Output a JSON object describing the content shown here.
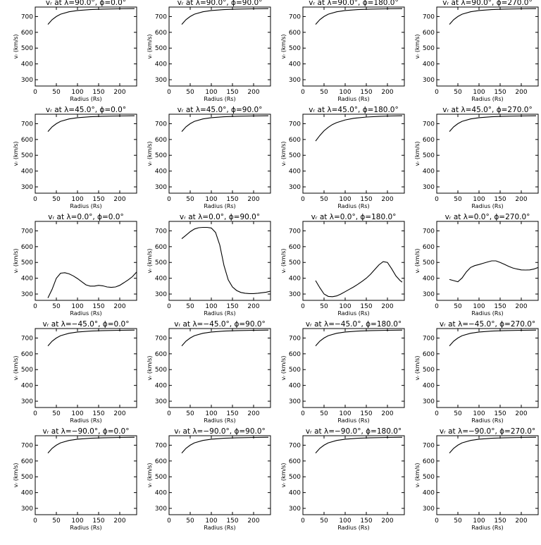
{
  "chart_data": [
    {
      "type": "line",
      "title": "vᵣ at λ=90.0°, ϕ=0.0°",
      "xlabel": "Radius (Rs)",
      "ylabel": "vᵣ (km/s)",
      "xlim": [
        0,
        240
      ],
      "ylim": [
        260,
        760
      ],
      "xticks": [
        0,
        50,
        100,
        150,
        200
      ],
      "yticks": [
        300,
        400,
        500,
        600,
        700
      ],
      "series": [
        {
          "x": [
            30,
            40,
            50,
            60,
            80,
            100,
            130,
            160,
            200,
            235
          ],
          "y": [
            650,
            680,
            700,
            715,
            730,
            738,
            744,
            747,
            749,
            750
          ]
        }
      ]
    },
    {
      "type": "line",
      "title": "vᵣ at λ=90.0°, ϕ=90.0°",
      "xlabel": "Radius (Rs)",
      "ylabel": "vᵣ (km/s)",
      "xlim": [
        0,
        240
      ],
      "ylim": [
        260,
        760
      ],
      "xticks": [
        0,
        50,
        100,
        150,
        200
      ],
      "yticks": [
        300,
        400,
        500,
        600,
        700
      ],
      "series": [
        {
          "x": [
            30,
            40,
            50,
            60,
            80,
            100,
            130,
            160,
            200,
            235
          ],
          "y": [
            650,
            680,
            700,
            715,
            730,
            738,
            744,
            747,
            749,
            750
          ]
        }
      ]
    },
    {
      "type": "line",
      "title": "vᵣ at λ=90.0°, ϕ=180.0°",
      "xlabel": "Radius (Rs)",
      "ylabel": "vᵣ (km/s)",
      "xlim": [
        0,
        240
      ],
      "ylim": [
        260,
        760
      ],
      "xticks": [
        0,
        50,
        100,
        150,
        200
      ],
      "yticks": [
        300,
        400,
        500,
        600,
        700
      ],
      "series": [
        {
          "x": [
            30,
            40,
            50,
            60,
            80,
            100,
            130,
            160,
            200,
            235
          ],
          "y": [
            650,
            680,
            700,
            715,
            730,
            738,
            744,
            747,
            749,
            750
          ]
        }
      ]
    },
    {
      "type": "line",
      "title": "vᵣ at λ=90.0°, ϕ=270.0°",
      "xlabel": "Radius (Rs)",
      "ylabel": "vᵣ (km/s)",
      "xlim": [
        0,
        240
      ],
      "ylim": [
        260,
        760
      ],
      "xticks": [
        0,
        50,
        100,
        150,
        200
      ],
      "yticks": [
        300,
        400,
        500,
        600,
        700
      ],
      "series": [
        {
          "x": [
            30,
            40,
            50,
            60,
            80,
            100,
            130,
            160,
            200,
            235
          ],
          "y": [
            650,
            680,
            700,
            715,
            730,
            738,
            744,
            747,
            749,
            750
          ]
        }
      ]
    },
    {
      "type": "line",
      "title": "vᵣ at λ=45.0°, ϕ=0.0°",
      "xlabel": "Radius (Rs)",
      "ylabel": "vᵣ (km/s)",
      "xlim": [
        0,
        240
      ],
      "ylim": [
        260,
        760
      ],
      "xticks": [
        0,
        50,
        100,
        150,
        200
      ],
      "yticks": [
        300,
        400,
        500,
        600,
        700
      ],
      "series": [
        {
          "x": [
            30,
            40,
            50,
            60,
            80,
            100,
            130,
            160,
            200,
            235
          ],
          "y": [
            650,
            680,
            700,
            715,
            730,
            738,
            744,
            747,
            749,
            750
          ]
        }
      ]
    },
    {
      "type": "line",
      "title": "vᵣ at λ=45.0°, ϕ=90.0°",
      "xlabel": "Radius (Rs)",
      "ylabel": "vᵣ (km/s)",
      "xlim": [
        0,
        240
      ],
      "ylim": [
        260,
        760
      ],
      "xticks": [
        0,
        50,
        100,
        150,
        200
      ],
      "yticks": [
        300,
        400,
        500,
        600,
        700
      ],
      "series": [
        {
          "x": [
            30,
            40,
            50,
            60,
            80,
            100,
            130,
            160,
            200,
            235
          ],
          "y": [
            650,
            680,
            700,
            715,
            730,
            738,
            744,
            747,
            749,
            750
          ]
        }
      ]
    },
    {
      "type": "line",
      "title": "vᵣ at λ=45.0°, ϕ=180.0°",
      "xlabel": "Radius (Rs)",
      "ylabel": "vᵣ (km/s)",
      "xlim": [
        0,
        240
      ],
      "ylim": [
        260,
        760
      ],
      "xticks": [
        0,
        50,
        100,
        150,
        200
      ],
      "yticks": [
        300,
        400,
        500,
        600,
        700
      ],
      "series": [
        {
          "x": [
            30,
            40,
            50,
            60,
            70,
            80,
            100,
            120,
            150,
            180,
            210,
            235
          ],
          "y": [
            590,
            625,
            655,
            677,
            695,
            707,
            724,
            734,
            742,
            746,
            749,
            750
          ]
        }
      ]
    },
    {
      "type": "line",
      "title": "vᵣ at λ=45.0°, ϕ=270.0°",
      "xlabel": "Radius (Rs)",
      "ylabel": "vᵣ (km/s)",
      "xlim": [
        0,
        240
      ],
      "ylim": [
        260,
        760
      ],
      "xticks": [
        0,
        50,
        100,
        150,
        200
      ],
      "yticks": [
        300,
        400,
        500,
        600,
        700
      ],
      "series": [
        {
          "x": [
            30,
            40,
            50,
            60,
            80,
            100,
            130,
            160,
            200,
            235
          ],
          "y": [
            650,
            680,
            700,
            715,
            730,
            738,
            744,
            747,
            749,
            750
          ]
        }
      ]
    },
    {
      "type": "line",
      "title": "vᵣ at λ=0.0°, ϕ=0.0°",
      "xlabel": "Radius (Rs)",
      "ylabel": "vᵣ (km/s)",
      "xlim": [
        0,
        240
      ],
      "ylim": [
        260,
        760
      ],
      "xticks": [
        0,
        50,
        100,
        150,
        200
      ],
      "yticks": [
        300,
        400,
        500,
        600,
        700
      ],
      "series": [
        {
          "x": [
            30,
            40,
            50,
            60,
            70,
            80,
            90,
            100,
            110,
            120,
            130,
            140,
            150,
            160,
            170,
            180,
            190,
            200,
            210,
            220,
            230,
            240
          ],
          "y": [
            275,
            330,
            400,
            432,
            435,
            428,
            415,
            398,
            378,
            358,
            350,
            350,
            355,
            352,
            345,
            342,
            345,
            355,
            372,
            390,
            410,
            440
          ]
        }
      ]
    },
    {
      "type": "line",
      "title": "vᵣ at λ=0.0°, ϕ=90.0°",
      "xlabel": "Radius (Rs)",
      "ylabel": "vᵣ (km/s)",
      "xlim": [
        0,
        240
      ],
      "ylim": [
        260,
        760
      ],
      "xticks": [
        0,
        50,
        100,
        150,
        200
      ],
      "yticks": [
        300,
        400,
        500,
        600,
        700
      ],
      "series": [
        {
          "x": [
            30,
            40,
            50,
            60,
            70,
            80,
            90,
            100,
            110,
            120,
            130,
            140,
            150,
            160,
            170,
            180,
            190,
            200,
            210,
            220,
            230,
            240
          ],
          "y": [
            650,
            672,
            695,
            712,
            720,
            722,
            722,
            718,
            690,
            610,
            480,
            390,
            345,
            322,
            310,
            305,
            303,
            303,
            305,
            308,
            312,
            318
          ]
        }
      ]
    },
    {
      "type": "line",
      "title": "vᵣ at λ=0.0°, ϕ=180.0°",
      "xlabel": "Radius (Rs)",
      "ylabel": "vᵣ (km/s)",
      "xlim": [
        0,
        240
      ],
      "ylim": [
        260,
        760
      ],
      "xticks": [
        0,
        50,
        100,
        150,
        200
      ],
      "yticks": [
        300,
        400,
        500,
        600,
        700
      ],
      "series": [
        {
          "x": [
            30,
            40,
            50,
            60,
            70,
            80,
            90,
            100,
            110,
            120,
            130,
            140,
            150,
            160,
            170,
            180,
            190,
            200,
            210,
            220,
            230,
            235
          ],
          "y": [
            385,
            340,
            300,
            285,
            283,
            288,
            300,
            315,
            330,
            345,
            362,
            380,
            400,
            425,
            455,
            485,
            505,
            500,
            460,
            415,
            385,
            375
          ]
        }
      ]
    },
    {
      "type": "line",
      "title": "vᵣ at λ=0.0°, ϕ=270.0°",
      "xlabel": "Radius (Rs)",
      "ylabel": "vᵣ (km/s)",
      "xlim": [
        0,
        240
      ],
      "ylim": [
        260,
        760
      ],
      "xticks": [
        0,
        50,
        100,
        150,
        200
      ],
      "yticks": [
        300,
        400,
        500,
        600,
        700
      ],
      "series": [
        {
          "x": [
            30,
            40,
            50,
            60,
            70,
            80,
            90,
            100,
            110,
            120,
            130,
            140,
            150,
            160,
            170,
            180,
            190,
            200,
            210,
            220,
            230,
            240
          ],
          "y": [
            392,
            385,
            378,
            402,
            440,
            468,
            480,
            487,
            495,
            503,
            510,
            510,
            500,
            488,
            475,
            465,
            458,
            453,
            452,
            453,
            458,
            468
          ]
        }
      ]
    },
    {
      "type": "line",
      "title": "vᵣ at λ=−45.0°, ϕ=0.0°",
      "xlabel": "Radius (Rs)",
      "ylabel": "vᵣ (km/s)",
      "xlim": [
        0,
        240
      ],
      "ylim": [
        260,
        760
      ],
      "xticks": [
        0,
        50,
        100,
        150,
        200
      ],
      "yticks": [
        300,
        400,
        500,
        600,
        700
      ],
      "series": [
        {
          "x": [
            30,
            40,
            50,
            60,
            80,
            100,
            130,
            160,
            200,
            235
          ],
          "y": [
            650,
            680,
            700,
            715,
            730,
            738,
            744,
            747,
            749,
            750
          ]
        }
      ]
    },
    {
      "type": "line",
      "title": "vᵣ at λ=−45.0°, ϕ=90.0°",
      "xlabel": "Radius (Rs)",
      "ylabel": "vᵣ (km/s)",
      "xlim": [
        0,
        240
      ],
      "ylim": [
        260,
        760
      ],
      "xticks": [
        0,
        50,
        100,
        150,
        200
      ],
      "yticks": [
        300,
        400,
        500,
        600,
        700
      ],
      "series": [
        {
          "x": [
            30,
            40,
            50,
            60,
            80,
            100,
            130,
            160,
            200,
            235
          ],
          "y": [
            650,
            680,
            700,
            715,
            730,
            738,
            744,
            747,
            749,
            750
          ]
        }
      ]
    },
    {
      "type": "line",
      "title": "vᵣ at λ=−45.0°, ϕ=180.0°",
      "xlabel": "Radius (Rs)",
      "ylabel": "vᵣ (km/s)",
      "xlim": [
        0,
        240
      ],
      "ylim": [
        260,
        760
      ],
      "xticks": [
        0,
        50,
        100,
        150,
        200
      ],
      "yticks": [
        300,
        400,
        500,
        600,
        700
      ],
      "series": [
        {
          "x": [
            30,
            40,
            50,
            60,
            80,
            100,
            130,
            160,
            200,
            235
          ],
          "y": [
            650,
            680,
            700,
            715,
            730,
            738,
            744,
            747,
            749,
            750
          ]
        }
      ]
    },
    {
      "type": "line",
      "title": "vᵣ at λ=−45.0°, ϕ=270.0°",
      "xlabel": "Radius (Rs)",
      "ylabel": "vᵣ (km/s)",
      "xlim": [
        0,
        240
      ],
      "ylim": [
        260,
        760
      ],
      "xticks": [
        0,
        50,
        100,
        150,
        200
      ],
      "yticks": [
        300,
        400,
        500,
        600,
        700
      ],
      "series": [
        {
          "x": [
            30,
            40,
            50,
            60,
            80,
            100,
            130,
            160,
            200,
            235
          ],
          "y": [
            650,
            680,
            700,
            715,
            730,
            738,
            744,
            747,
            749,
            750
          ]
        }
      ]
    },
    {
      "type": "line",
      "title": "vᵣ at λ=−90.0°, ϕ=0.0°",
      "xlabel": "Radius (Rs)",
      "ylabel": "vᵣ (km/s)",
      "xlim": [
        0,
        240
      ],
      "ylim": [
        260,
        760
      ],
      "xticks": [
        0,
        50,
        100,
        150,
        200
      ],
      "yticks": [
        300,
        400,
        500,
        600,
        700
      ],
      "series": [
        {
          "x": [
            30,
            40,
            50,
            60,
            80,
            100,
            130,
            160,
            200,
            235
          ],
          "y": [
            650,
            680,
            700,
            715,
            730,
            738,
            744,
            747,
            749,
            750
          ]
        }
      ]
    },
    {
      "type": "line",
      "title": "vᵣ at λ=−90.0°, ϕ=90.0°",
      "xlabel": "Radius (Rs)",
      "ylabel": "vᵣ (km/s)",
      "xlim": [
        0,
        240
      ],
      "ylim": [
        260,
        760
      ],
      "xticks": [
        0,
        50,
        100,
        150,
        200
      ],
      "yticks": [
        300,
        400,
        500,
        600,
        700
      ],
      "series": [
        {
          "x": [
            30,
            40,
            50,
            60,
            80,
            100,
            130,
            160,
            200,
            235
          ],
          "y": [
            650,
            680,
            700,
            715,
            730,
            738,
            744,
            747,
            749,
            750
          ]
        }
      ]
    },
    {
      "type": "line",
      "title": "vᵣ at λ=−90.0°, ϕ=180.0°",
      "xlabel": "Radius (Rs)",
      "ylabel": "vᵣ (km/s)",
      "xlim": [
        0,
        240
      ],
      "ylim": [
        260,
        760
      ],
      "xticks": [
        0,
        50,
        100,
        150,
        200
      ],
      "yticks": [
        300,
        400,
        500,
        600,
        700
      ],
      "series": [
        {
          "x": [
            30,
            40,
            50,
            60,
            80,
            100,
            130,
            160,
            200,
            235
          ],
          "y": [
            650,
            680,
            700,
            715,
            730,
            738,
            744,
            747,
            749,
            750
          ]
        }
      ]
    },
    {
      "type": "line",
      "title": "vᵣ at λ=−90.0°, ϕ=270.0°",
      "xlabel": "Radius (Rs)",
      "ylabel": "vᵣ (km/s)",
      "xlim": [
        0,
        240
      ],
      "ylim": [
        260,
        760
      ],
      "xticks": [
        0,
        50,
        100,
        150,
        200
      ],
      "yticks": [
        300,
        400,
        500,
        600,
        700
      ],
      "series": [
        {
          "x": [
            30,
            40,
            50,
            60,
            80,
            100,
            130,
            160,
            200,
            235
          ],
          "y": [
            650,
            680,
            700,
            715,
            730,
            738,
            744,
            747,
            749,
            750
          ]
        }
      ]
    }
  ]
}
